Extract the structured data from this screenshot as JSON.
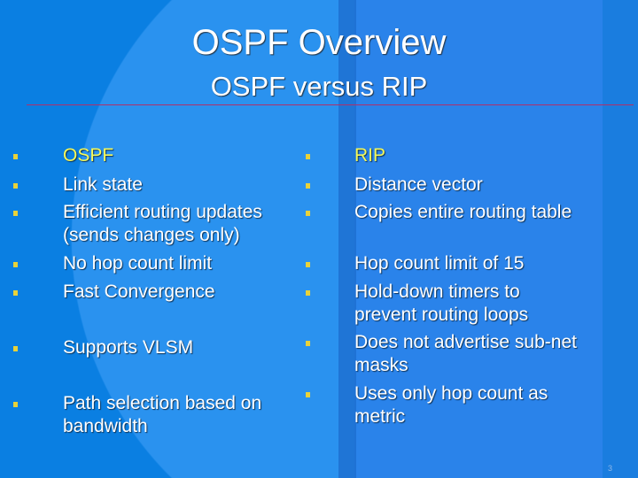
{
  "slide": {
    "title": "OSPF Overview",
    "subtitle": "OSPF versus RIP",
    "page_number": "3",
    "left_column": [
      {
        "text": "OSPF",
        "heading": true
      },
      {
        "text": "Link state"
      },
      {
        "text": "Efficient routing updates (sends changes only)"
      },
      {
        "text": "No hop count limit"
      },
      {
        "text": "Fast Convergence"
      },
      {
        "text": "Supports VLSM"
      },
      {
        "text": "Path selection based on bandwidth"
      }
    ],
    "right_column": [
      {
        "text": "RIP",
        "heading": true
      },
      {
        "text": "Distance vector"
      },
      {
        "text": "Copies entire routing table"
      },
      {
        "text": "Hop count limit of 15"
      },
      {
        "text": "Hold-down timers to prevent routing loops"
      },
      {
        "text": "Does not advertise sub-net masks"
      },
      {
        "text": "Uses only hop count as metric"
      }
    ],
    "colors": {
      "background": "#0a7fe2",
      "heading_text": "#f4f85a",
      "bullet": "#e8d23a",
      "rule": "#b0306a"
    }
  }
}
